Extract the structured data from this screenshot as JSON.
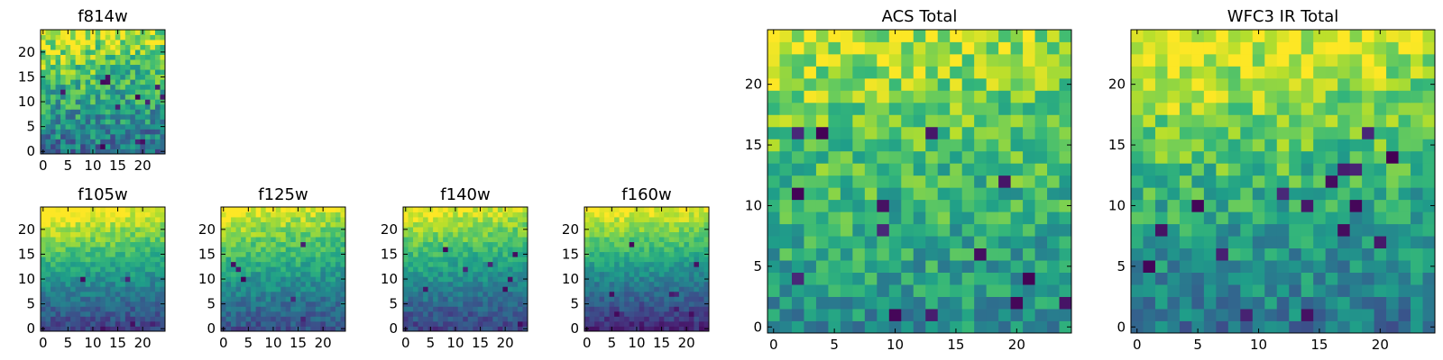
{
  "chart_data": [
    {
      "id": "f814w",
      "type": "heatmap",
      "title": "f814w",
      "grid_size": 25,
      "x_ticks": [
        "0",
        "5",
        "10",
        "15",
        "20"
      ],
      "y_ticks": [
        "0",
        "5",
        "10",
        "15",
        "20"
      ],
      "xlim": [
        -0.5,
        24.5
      ],
      "ylim": [
        -0.5,
        24.5
      ],
      "colormap": "viridis",
      "trend": "bright (yellow) at top-left, darker toward bottom with scattered dark pixels",
      "seed": 11,
      "base_top": 0.85,
      "base_bottom": 0.38,
      "noise": 0.22,
      "dark_pixels": 12,
      "left_boost": 0.08
    },
    {
      "id": "f105w",
      "type": "heatmap",
      "title": "f105w",
      "grid_size": 25,
      "x_ticks": [
        "0",
        "5",
        "10",
        "15",
        "20"
      ],
      "y_ticks": [
        "0",
        "5",
        "10",
        "15",
        "20"
      ],
      "xlim": [
        -0.5,
        24.5
      ],
      "ylim": [
        -0.5,
        24.5
      ],
      "colormap": "viridis",
      "trend": "smooth gradient, yellow top-left to dark purple bottom",
      "seed": 23,
      "base_top": 0.95,
      "base_bottom": 0.2,
      "noise": 0.1,
      "dark_pixels": 6,
      "left_boost": 0.12
    },
    {
      "id": "f125w",
      "type": "heatmap",
      "title": "f125w",
      "grid_size": 25,
      "x_ticks": [
        "0",
        "5",
        "10",
        "15",
        "20"
      ],
      "y_ticks": [
        "0",
        "5",
        "10",
        "15",
        "20"
      ],
      "xlim": [
        -0.5,
        24.5
      ],
      "ylim": [
        -0.5,
        24.5
      ],
      "colormap": "viridis",
      "trend": "smooth gradient, yellow top-left to dark bottom",
      "seed": 37,
      "base_top": 0.9,
      "base_bottom": 0.25,
      "noise": 0.11,
      "dark_pixels": 6,
      "left_boost": 0.1
    },
    {
      "id": "f140w",
      "type": "heatmap",
      "title": "f140w",
      "grid_size": 25,
      "x_ticks": [
        "0",
        "5",
        "10",
        "15",
        "20"
      ],
      "y_ticks": [
        "0",
        "5",
        "10",
        "15",
        "20"
      ],
      "xlim": [
        -0.5,
        24.5
      ],
      "ylim": [
        -0.5,
        24.5
      ],
      "colormap": "viridis",
      "trend": "smooth gradient, yellow top-left to dark bottom",
      "seed": 41,
      "base_top": 0.9,
      "base_bottom": 0.2,
      "noise": 0.1,
      "dark_pixels": 8,
      "left_boost": 0.1
    },
    {
      "id": "f160w",
      "type": "heatmap",
      "title": "f160w",
      "grid_size": 25,
      "x_ticks": [
        "0",
        "5",
        "10",
        "15",
        "20"
      ],
      "y_ticks": [
        "0",
        "5",
        "10",
        "15",
        "20"
      ],
      "xlim": [
        -0.5,
        24.5
      ],
      "ylim": [
        -0.5,
        24.5
      ],
      "colormap": "viridis",
      "trend": "smooth gradient, yellow top to dark purple bottom-left",
      "seed": 53,
      "base_top": 0.95,
      "base_bottom": 0.12,
      "noise": 0.09,
      "dark_pixels": 8,
      "left_boost": 0.05
    },
    {
      "id": "acs-total",
      "type": "heatmap",
      "title": "ACS Total",
      "grid_size": 25,
      "x_ticks": [
        "0",
        "5",
        "10",
        "15",
        "20"
      ],
      "y_ticks": [
        "0",
        "5",
        "10",
        "15",
        "20"
      ],
      "xlim": [
        -0.5,
        24.5
      ],
      "ylim": [
        -0.5,
        24.5
      ],
      "colormap": "viridis",
      "trend": "yellow-green at top, mid-green below with scattered dark pixels",
      "seed": 67,
      "base_top": 0.85,
      "base_bottom": 0.5,
      "noise": 0.18,
      "dark_pixels": 14,
      "left_boost": 0.06
    },
    {
      "id": "wfc3-ir-total",
      "type": "heatmap",
      "title": "WFC3 IR Total",
      "grid_size": 25,
      "x_ticks": [
        "0",
        "5",
        "10",
        "15",
        "20"
      ],
      "y_ticks": [
        "0",
        "5",
        "10",
        "15",
        "20"
      ],
      "xlim": [
        -0.5,
        24.5
      ],
      "ylim": [
        -0.5,
        24.5
      ],
      "colormap": "viridis",
      "trend": "yellow at top-left, green mid, dark blue lower region with scattered dark pixels",
      "seed": 79,
      "base_top": 0.9,
      "base_bottom": 0.4,
      "noise": 0.17,
      "dark_pixels": 16,
      "left_boost": 0.1
    }
  ]
}
